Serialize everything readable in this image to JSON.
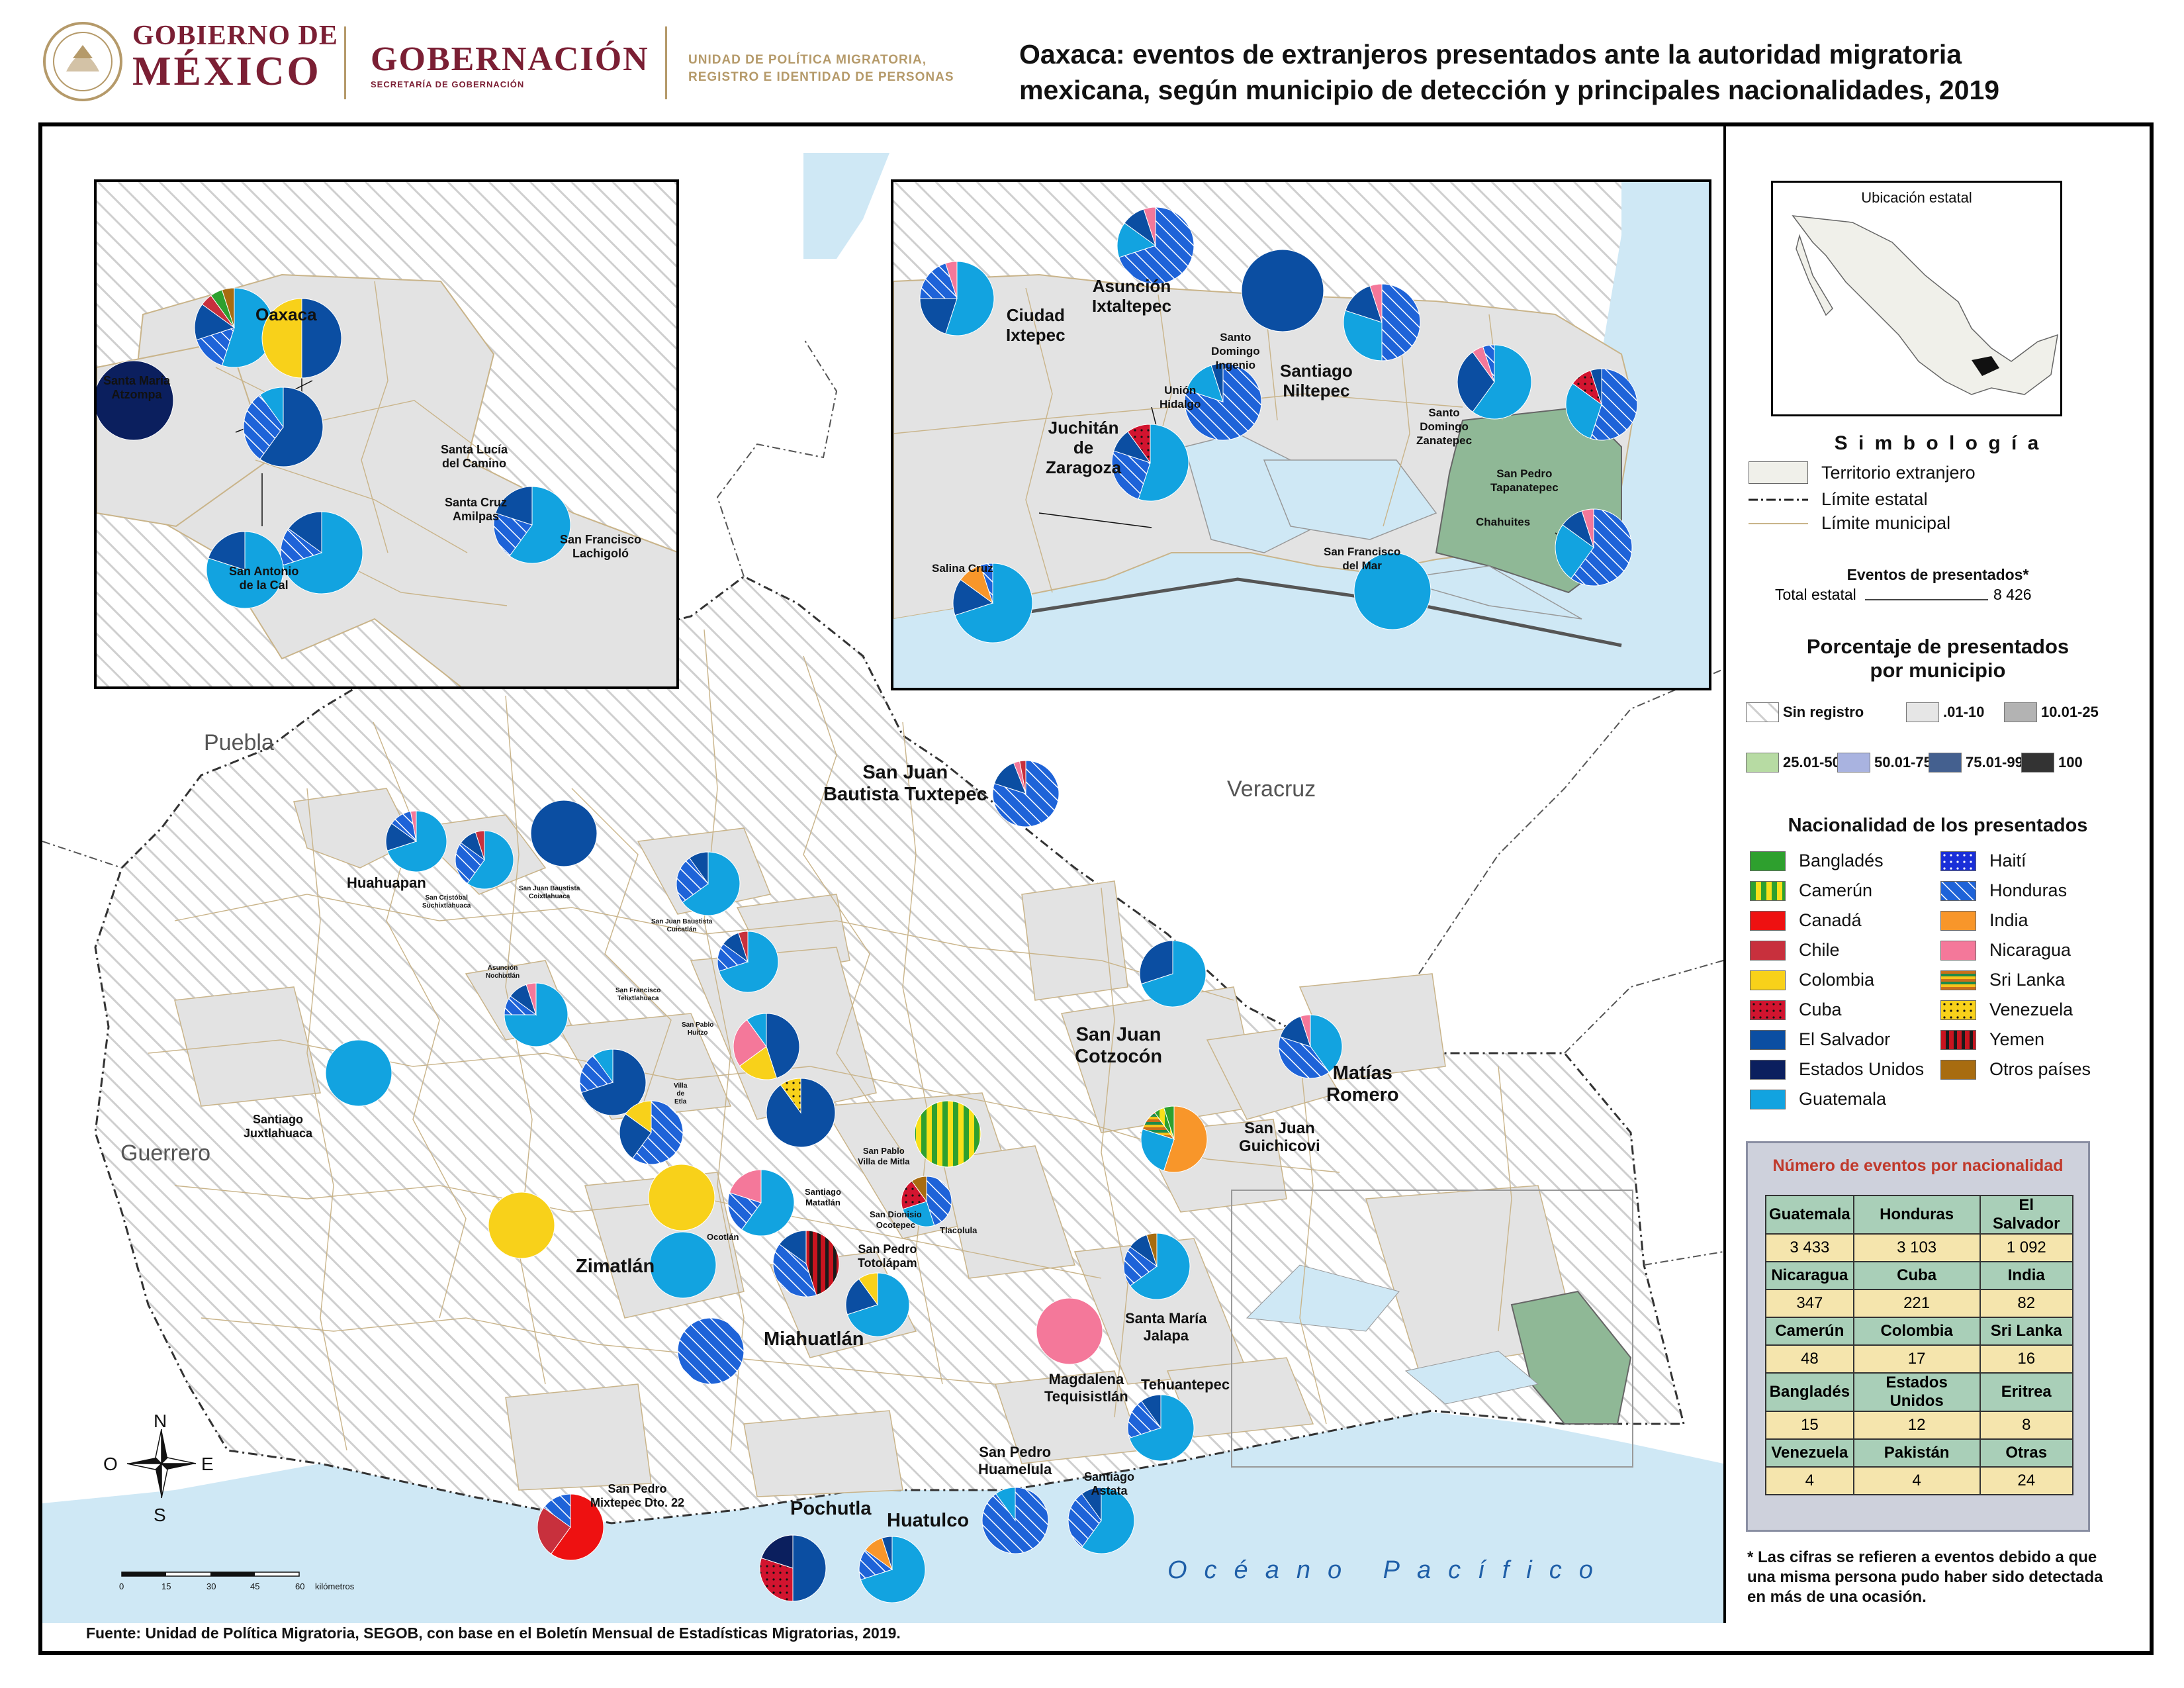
{
  "header": {
    "gobierno_line1": "GOBIERNO DE",
    "gobierno_line2": "MÉXICO",
    "gobernacion": "GOBERNACIÓN",
    "gobernacion_sub": "SECRETARÍA DE GOBERNACIÓN",
    "unidad_line1": "UNIDAD DE POLÍTICA MIGRATORIA,",
    "unidad_line2": "REGISTRO E IDENTIDAD DE PERSONAS",
    "title_line1": "Oaxaca: eventos de extranjeros presentados ante la autoridad migratoria",
    "title_line2": "mexicana, según municipio de detección y principales nacionalidades, 2019"
  },
  "map": {
    "state_labels": [
      "Puebla",
      "Veracruz",
      "Guerrero"
    ],
    "ocean_label": "Océano Pacífico",
    "compass": {
      "n": "N",
      "s": "S",
      "e": "E",
      "o": "O"
    },
    "scale": {
      "ticks": [
        "0",
        "15",
        "30",
        "45",
        "60"
      ],
      "unit": "kilómetros"
    },
    "municipalities": [
      {
        "name": "San Juan Bautista Tuxtepec",
        "line1": "San Juan",
        "line2": "Bautista Tuxtepec"
      },
      {
        "name": "Huahuapan",
        "line1": "Huahuapan"
      },
      {
        "name": "San Cristóbal Suchixtlahuaca",
        "line1": "San Cristóbal",
        "line2": "Suchixtlahuaca"
      },
      {
        "name": "San Juan Baustista Coixtlahuaca",
        "line1": "San Juan Baustista",
        "line2": "Coixtlahuaca"
      },
      {
        "name": "San Juan Baustista Cuicatlán",
        "line1": "San Juan Baustista",
        "line2": "Cuicatlán"
      },
      {
        "name": "Asunción Nochixtlán",
        "line1": "Asunción",
        "line2": "Nochixtlán"
      },
      {
        "name": "San Francisco Telixtlahuaca",
        "line1": "San Francisco",
        "line2": "Telixtlahuaca"
      },
      {
        "name": "San Pablo Huitzo",
        "line1": "San Pablo",
        "line2": "Huitzo"
      },
      {
        "name": "Villa de Etla",
        "line1": "Villa",
        "line2": "de",
        "line3": "Etla"
      },
      {
        "name": "Santiago Juxtlahuaca",
        "line1": "Santiago",
        "line2": "Juxtlahuaca"
      },
      {
        "name": "San Juan Cotzocón",
        "line1": "San Juan",
        "line2": "Cotzocón"
      },
      {
        "name": "Matías Romero",
        "line1": "Matías",
        "line2": "Romero"
      },
      {
        "name": "San Juan Guichicovi",
        "line1": "San Juan",
        "line2": "Guichicovi"
      },
      {
        "name": "San Pablo Villa de Mitla",
        "line1": "San Pablo",
        "line2": "Villa de Mitla"
      },
      {
        "name": "Santiago Matatlán",
        "line1": "Santiago",
        "line2": "Matatlán"
      },
      {
        "name": "San Dionisio Ocotepec",
        "line1": "San Dionisio",
        "line2": "Ocotepec"
      },
      {
        "name": "Tlacolula",
        "line1": "Tlacolula"
      },
      {
        "name": "San Pedro Totolápam",
        "line1": "San Pedro",
        "line2": "Totolápam"
      },
      {
        "name": "Ocotlán",
        "line1": "Ocotlán"
      },
      {
        "name": "Zimatlán",
        "line1": "Zimatlán"
      },
      {
        "name": "Miahuatlán",
        "line1": "Miahuatlán"
      },
      {
        "name": "Magdalena Tequisistlán",
        "line1": "Magdalena",
        "line2": "Tequisistlán"
      },
      {
        "name": "Santa María Jalapa",
        "line1": "Santa María",
        "line2": "Jalapa"
      },
      {
        "name": "Tehuantepec",
        "line1": "Tehuantepec"
      },
      {
        "name": "San Pedro Huamelula",
        "line1": "San Pedro",
        "line2": "Huamelula"
      },
      {
        "name": "Santiago Astata",
        "line1": "Santiago",
        "line2": "Astata"
      },
      {
        "name": "San Pedro Mixtepec Dto. 22",
        "line1": "San Pedro",
        "line2": "Mixtepec Dto. 22"
      },
      {
        "name": "Pochutla",
        "line1": "Pochutla"
      },
      {
        "name": "Huatulco",
        "line1": "Huatulco"
      },
      {
        "name": "Tlacolula small",
        "line1": "Tlacolula"
      }
    ]
  },
  "inset_oaxaca": {
    "labels": [
      {
        "line1": "Oaxaca"
      },
      {
        "line1": "Santa María",
        "line2": "Atzompa"
      },
      {
        "line1": "Santa Lucía",
        "line2": "del Camino"
      },
      {
        "line1": "Santa Cruz",
        "line2": "Amilpas"
      },
      {
        "line1": "San Francisco",
        "line2": "Lachigoló"
      },
      {
        "line1": "San Antonio",
        "line2": "de la Cal"
      }
    ]
  },
  "inset_isthmus": {
    "labels": [
      {
        "line1": "Asunción",
        "line2": "Ixtaltepec"
      },
      {
        "line1": "Ciudad",
        "line2": "Ixtepec"
      },
      {
        "line1": "Santo",
        "line2": "Domingo",
        "line3": "Ingenio"
      },
      {
        "line1": "Santiago",
        "line2": "Niltepec"
      },
      {
        "line1": "Unión",
        "line2": "Hidalgo"
      },
      {
        "line1": "Juchitán",
        "line2": "de",
        "line3": "Zaragoza"
      },
      {
        "line1": "Santo",
        "line2": "Domingo",
        "line3": "Zanatepec"
      },
      {
        "line1": "San Pedro",
        "line2": "Tapanatepec"
      },
      {
        "line1": "Chahuites"
      },
      {
        "line1": "San Francisco",
        "line2": "del Mar"
      },
      {
        "line1": "Salina Cruz"
      }
    ]
  },
  "legend": {
    "location_title": "Ubicación estatal",
    "symbology_title": "S i m b o l o g í a",
    "symbology_items": [
      "Territorio extranjero",
      "Límite estatal",
      "Límite municipal"
    ],
    "events_title": "Eventos de presentados*",
    "events_total_label": "Total estatal",
    "events_total_value": "8 426",
    "pct_title_line1": "Porcentaje de presentados",
    "pct_title_line2": "por municipio",
    "pct_classes": [
      {
        "label": "Sin registro",
        "color": "hatch"
      },
      {
        "label": ".01-10",
        "color": "#e6e6e6"
      },
      {
        "label": "10.01-25",
        "color": "#b3b3b3"
      },
      {
        "label": "25.01-50",
        "color": "#b7dba3"
      },
      {
        "label": "50.01-75",
        "color": "#a9b3e0"
      },
      {
        "label": "75.01-99",
        "color": "#44608f"
      },
      {
        "label": "100",
        "color": "#333333"
      }
    ],
    "nat_title": "Nacionalidad de los presentados",
    "nationalities": [
      {
        "label": "Bangladés",
        "color": "#2ea02e",
        "pattern": "solid"
      },
      {
        "label": "Camerún",
        "color": "#2ea02e",
        "pattern": "stripes-yellow"
      },
      {
        "label": "Canadá",
        "color": "#ee1111",
        "pattern": "solid"
      },
      {
        "label": "Chile",
        "color": "#c8303d",
        "pattern": "solid"
      },
      {
        "label": "Colombia",
        "color": "#f8d11a",
        "pattern": "solid"
      },
      {
        "label": "Cuba",
        "color": "#d2142f",
        "pattern": "dots"
      },
      {
        "label": "El Salvador",
        "color": "#0b4ea2",
        "pattern": "solid"
      },
      {
        "label": "Estados Unidos",
        "color": "#0b1f5e",
        "pattern": "solid"
      },
      {
        "label": "Guatemala",
        "color": "#12a3e0",
        "pattern": "solid"
      },
      {
        "label": "Haití",
        "color": "#1a2fd8",
        "pattern": "dots"
      },
      {
        "label": "Honduras",
        "color": "#1e63d8",
        "pattern": "hatch"
      },
      {
        "label": "India",
        "color": "#f8962a",
        "pattern": "solid"
      },
      {
        "label": "Nicaragua",
        "color": "#f4789a",
        "pattern": "solid"
      },
      {
        "label": "Sri Lanka",
        "color": "#c96f1b",
        "pattern": "srilanka"
      },
      {
        "label": "Venezuela",
        "color": "#f8d11a",
        "pattern": "dots-yellow"
      },
      {
        "label": "Yemen",
        "color": "#c8141f",
        "pattern": "stripes-red"
      },
      {
        "label": "Otros países",
        "color": "#a86c10",
        "pattern": "solid"
      }
    ]
  },
  "nat_table": {
    "title": "Número de eventos por nacionalidad",
    "rows": [
      {
        "headers": [
          "Guatemala",
          "Honduras",
          "El Salvador"
        ],
        "values": [
          "3 433",
          "3 103",
          "1 092"
        ]
      },
      {
        "headers": [
          "Nicaragua",
          "Cuba",
          "India"
        ],
        "values": [
          "347",
          "221",
          "82"
        ]
      },
      {
        "headers": [
          "Camerún",
          "Colombia",
          "Sri Lanka"
        ],
        "values": [
          "48",
          "17",
          "16"
        ]
      },
      {
        "headers": [
          "Bangladés",
          "Estados Unidos",
          "Eritrea"
        ],
        "values": [
          "15",
          "12",
          "8"
        ]
      },
      {
        "headers": [
          "Venezuela",
          "Pakistán",
          "Otras"
        ],
        "values": [
          "4",
          "4",
          "24"
        ]
      }
    ]
  },
  "footnote": "* Las cifras se refieren a eventos debido a que una misma persona pudo haber sido detectada en más de una ocasión.",
  "source": "Fuente: Unidad de Política Migratoria, SEGOB, con base en el Boletín Mensual de Estadísticas Migratorias, 2019."
}
